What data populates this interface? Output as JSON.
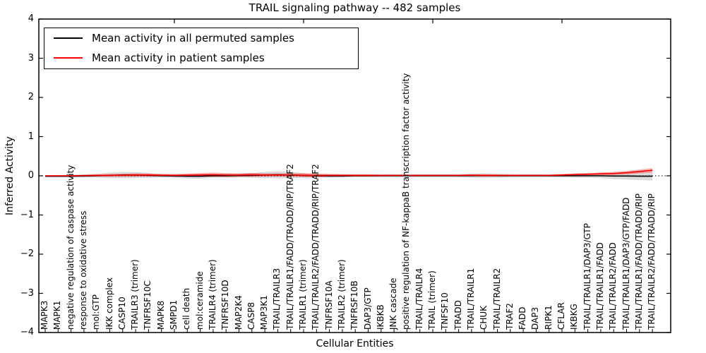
{
  "figure": {
    "title": "TRAIL signaling pathway -- 482 samples",
    "xlabel": "Cellular Entities",
    "ylabel": "Inferred Activity"
  },
  "legend": {
    "items": [
      {
        "label": "Mean activity in all permuted samples",
        "color": "#000000"
      },
      {
        "label": "Mean activity in patient samples",
        "color": "#ff0000"
      }
    ]
  },
  "chart_data": {
    "type": "line",
    "title": "TRAIL signaling pathway -- 482 samples",
    "xlabel": "Cellular Entities",
    "ylabel": "Inferred Activity",
    "ylim": [
      -4,
      4
    ],
    "yticks": [
      4,
      3,
      2,
      1,
      0,
      -1,
      -2,
      -3,
      -4
    ],
    "ytick_labels": [
      "4",
      "3",
      "2",
      "1",
      "0",
      "−1",
      "−2",
      "−3",
      "−4"
    ],
    "top_xticks": [
      10,
      20,
      30,
      40
    ],
    "grid": false,
    "zero_line_style": "dotted",
    "legend_position": "upper left",
    "categories": [
      "MAPK3",
      "MAPK1",
      "negative regulation of caspase activity",
      "response to oxidative stress",
      "mol:GTP",
      "IKK complex",
      "CASP10",
      "TRAILR3 (trimer)",
      "TNFRSF10C",
      "MAPK8",
      "SMPD1",
      "cell death",
      "mol:ceramide",
      "TRAILR4 (trimer)",
      "TNFRSF10D",
      "MAP2K4",
      "CASP8",
      "MAP3K1",
      "TRAIL/TRAILR3",
      "TRAIL/TRAILR1/FADD/TRADD/RIP/TRAF2",
      "TRAILR1 (trimer)",
      "TRAIL/TRAILR2/FADD/TRADD/RIP/TRAF2",
      "TNFRSF10A",
      "TRAILR2 (trimer)",
      "TNFRSF10B",
      "DAP3/GTP",
      "IKBKB",
      "JNK cascade",
      "positive regulation of NF-kappaB transcription factor activity",
      "TRAIL/TRAILR4",
      "TRAIL (trimer)",
      "TNFSF10",
      "TRADD",
      "TRAIL/TRAILR1",
      "CHUK",
      "TRAIL/TRAILR2",
      "TRAF2",
      "FADD",
      "DAP3",
      "RIPK1",
      "CFLAR",
      "IKBKG",
      "TRAIL/TRAILR1/DAP3/GTP",
      "TRAIL/TRAILR1/FADD",
      "TRAIL/TRAILR2/FADD",
      "TRAIL/TRAILR1/DAP3/GTP/FADD",
      "TRAIL/TRAILR1/FADD/TRADD/RIP",
      "TRAIL/TRAILR2/FADD/TRADD/RIP"
    ],
    "series": [
      {
        "name": "Mean activity in all permuted samples",
        "color": "#000000",
        "band_color": "#888888",
        "band_opacity": 0.3,
        "values": [
          -0.01,
          -0.01,
          -0.01,
          -0.005,
          0.0,
          0.01,
          0.02,
          0.02,
          0.01,
          0.0,
          -0.005,
          -0.01,
          -0.01,
          0.0,
          0.0,
          0.005,
          0.01,
          0.02,
          0.025,
          0.02,
          0.01,
          0.0,
          -0.005,
          -0.005,
          0.0,
          0.0,
          0.0,
          0.0,
          0.0,
          0.0,
          0.0,
          0.0,
          0.0,
          0.0,
          0.005,
          0.0,
          0.0,
          0.0,
          0.0,
          0.0,
          0.0,
          0.0,
          0.0,
          0.0,
          -0.005,
          -0.005,
          -0.01,
          -0.01
        ],
        "band_halfwidth": [
          0.03,
          0.03,
          0.035,
          0.04,
          0.05,
          0.07,
          0.08,
          0.075,
          0.06,
          0.05,
          0.05,
          0.06,
          0.065,
          0.05,
          0.045,
          0.05,
          0.06,
          0.08,
          0.09,
          0.08,
          0.06,
          0.05,
          0.045,
          0.04,
          0.04,
          0.04,
          0.04,
          0.04,
          0.04,
          0.04,
          0.04,
          0.04,
          0.045,
          0.055,
          0.06,
          0.055,
          0.045,
          0.04,
          0.04,
          0.04,
          0.045,
          0.05,
          0.05,
          0.06,
          0.08,
          0.09,
          0.1,
          0.11
        ]
      },
      {
        "name": "Mean activity in patient samples",
        "color": "#ff0000",
        "band_color": "#ff0000",
        "band_opacity": 0.32,
        "values": [
          0.0,
          0.0,
          0.0,
          0.005,
          0.01,
          0.01,
          0.015,
          0.02,
          0.02,
          0.015,
          0.01,
          0.015,
          0.02,
          0.025,
          0.02,
          0.02,
          0.025,
          0.02,
          0.02,
          0.02,
          0.015,
          0.01,
          0.01,
          0.01,
          0.01,
          0.01,
          0.01,
          0.01,
          0.01,
          0.01,
          0.01,
          0.01,
          0.01,
          0.015,
          0.01,
          0.01,
          0.01,
          0.01,
          0.01,
          0.01,
          0.02,
          0.03,
          0.04,
          0.05,
          0.06,
          0.08,
          0.11,
          0.14
        ],
        "band_halfwidth": [
          0.015,
          0.015,
          0.02,
          0.02,
          0.025,
          0.035,
          0.04,
          0.045,
          0.04,
          0.03,
          0.03,
          0.04,
          0.05,
          0.055,
          0.05,
          0.045,
          0.05,
          0.045,
          0.04,
          0.045,
          0.05,
          0.045,
          0.035,
          0.03,
          0.025,
          0.025,
          0.02,
          0.02,
          0.02,
          0.02,
          0.02,
          0.02,
          0.02,
          0.025,
          0.03,
          0.025,
          0.02,
          0.02,
          0.02,
          0.02,
          0.025,
          0.03,
          0.03,
          0.035,
          0.04,
          0.045,
          0.05,
          0.055
        ]
      }
    ]
  }
}
